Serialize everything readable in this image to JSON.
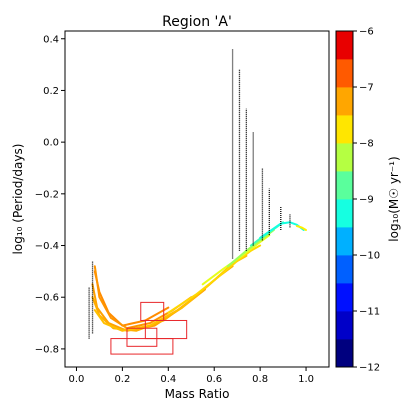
{
  "chart_data": {
    "type": "line",
    "title": "Region 'A'",
    "xlabel": "Mass Ratio",
    "ylabel": "log₁₀ (Period/days)",
    "xlim": [
      -0.05,
      1.1
    ],
    "ylim": [
      -0.87,
      0.43
    ],
    "x_ticks": [
      0.0,
      0.2,
      0.4,
      0.6,
      0.8,
      1.0
    ],
    "x_tick_labels": [
      "0.0",
      "0.2",
      "0.4",
      "0.6",
      "0.8",
      "1.0"
    ],
    "y_ticks": [
      -0.8,
      -0.6,
      -0.4,
      -0.2,
      0.0,
      0.2,
      0.4
    ],
    "y_tick_labels": [
      "−0.8",
      "−0.6",
      "−0.4",
      "−0.2",
      "0.0",
      "0.2",
      "0.4"
    ],
    "colorbar": {
      "label": "log₁₀(M☉ yr⁻¹)",
      "range": [
        -12,
        -6
      ],
      "ticks": [
        -12,
        -11,
        -10,
        -9,
        -8,
        -7,
        -6
      ],
      "tick_labels": [
        "−12",
        "−11",
        "−10",
        "−9",
        "−8",
        "−7",
        "−6"
      ],
      "bands": [
        {
          "from": -12.0,
          "to": -11.5,
          "color": "#00007f"
        },
        {
          "from": -11.5,
          "to": -11.0,
          "color": "#0000c8"
        },
        {
          "from": -11.0,
          "to": -10.5,
          "color": "#0010ff"
        },
        {
          "from": -10.5,
          "to": -10.0,
          "color": "#0060ff"
        },
        {
          "from": -10.0,
          "to": -9.5,
          "color": "#00b0ff"
        },
        {
          "from": -9.5,
          "to": -9.0,
          "color": "#16ffe1"
        },
        {
          "from": -9.0,
          "to": -8.5,
          "color": "#5aff9c"
        },
        {
          "from": -8.5,
          "to": -8.0,
          "color": "#b5ff42"
        },
        {
          "from": -8.0,
          "to": -7.5,
          "color": "#ffe600"
        },
        {
          "from": -7.5,
          "to": -7.0,
          "color": "#ffa600"
        },
        {
          "from": -7.0,
          "to": -6.5,
          "color": "#ff5a00"
        },
        {
          "from": -6.5,
          "to": -6.0,
          "color": "#e80000"
        },
        {
          "from": -6.0,
          "to": -5.5,
          "color": "#7f0000"
        }
      ]
    },
    "tracks": [
      {
        "color": "#ff8c00",
        "points": [
          [
            0.08,
            -0.5
          ],
          [
            0.1,
            -0.58
          ],
          [
            0.14,
            -0.66
          ],
          [
            0.2,
            -0.71
          ],
          [
            0.3,
            -0.69
          ],
          [
            0.4,
            -0.64
          ]
        ]
      },
      {
        "color": "#ff9500",
        "points": [
          [
            0.08,
            -0.48
          ],
          [
            0.1,
            -0.6
          ],
          [
            0.15,
            -0.68
          ],
          [
            0.22,
            -0.72
          ],
          [
            0.32,
            -0.7
          ],
          [
            0.42,
            -0.65
          ],
          [
            0.5,
            -0.6
          ]
        ]
      },
      {
        "color": "#ffa200",
        "points": [
          [
            0.07,
            -0.55
          ],
          [
            0.09,
            -0.64
          ],
          [
            0.14,
            -0.7
          ],
          [
            0.22,
            -0.73
          ],
          [
            0.34,
            -0.71
          ],
          [
            0.46,
            -0.64
          ],
          [
            0.56,
            -0.57
          ]
        ]
      },
      {
        "color": "#ffae00",
        "points": [
          [
            0.07,
            -0.6
          ],
          [
            0.1,
            -0.67
          ],
          [
            0.16,
            -0.72
          ],
          [
            0.26,
            -0.73
          ],
          [
            0.38,
            -0.69
          ],
          [
            0.5,
            -0.61
          ],
          [
            0.62,
            -0.52
          ],
          [
            0.68,
            -0.48
          ]
        ]
      },
      {
        "color": "#ffc000",
        "points": [
          [
            0.08,
            -0.65
          ],
          [
            0.12,
            -0.7
          ],
          [
            0.2,
            -0.73
          ],
          [
            0.32,
            -0.71
          ],
          [
            0.46,
            -0.64
          ],
          [
            0.58,
            -0.55
          ],
          [
            0.68,
            -0.47
          ],
          [
            0.74,
            -0.44
          ]
        ]
      },
      {
        "color": "#ffd800",
        "points": [
          [
            0.4,
            -0.66
          ],
          [
            0.52,
            -0.59
          ],
          [
            0.62,
            -0.52
          ],
          [
            0.7,
            -0.46
          ],
          [
            0.76,
            -0.42
          ],
          [
            0.8,
            -0.4
          ]
        ]
      },
      {
        "color": "#e6ff1a",
        "points": [
          [
            0.55,
            -0.55
          ],
          [
            0.64,
            -0.49
          ],
          [
            0.72,
            -0.44
          ],
          [
            0.78,
            -0.4
          ],
          [
            0.84,
            -0.36
          ]
        ]
      },
      {
        "color": "#9cff5a",
        "points": [
          [
            0.66,
            -0.48
          ],
          [
            0.74,
            -0.42
          ],
          [
            0.8,
            -0.38
          ],
          [
            0.86,
            -0.34
          ]
        ]
      },
      {
        "color": "#3dffba",
        "points": [
          [
            0.76,
            -0.4
          ],
          [
            0.82,
            -0.36
          ],
          [
            0.87,
            -0.33
          ],
          [
            0.9,
            -0.31
          ]
        ]
      },
      {
        "color": "#16ffe1",
        "points": [
          [
            0.8,
            -0.37
          ],
          [
            0.85,
            -0.34
          ],
          [
            0.89,
            -0.315
          ],
          [
            0.93,
            -0.31
          ],
          [
            0.96,
            -0.32
          ],
          [
            0.99,
            -0.34
          ]
        ]
      },
      {
        "color": "#ffee00",
        "points": [
          [
            0.96,
            -0.325
          ],
          [
            0.98,
            -0.33
          ],
          [
            1.0,
            -0.34
          ]
        ]
      }
    ],
    "vertical_lines": [
      {
        "x": 0.055,
        "y_range": [
          -0.76,
          -0.56
        ]
      },
      {
        "x": 0.07,
        "y_range": [
          -0.74,
          -0.46
        ]
      },
      {
        "x": 0.68,
        "y_range": [
          -0.45,
          0.36
        ]
      },
      {
        "x": 0.71,
        "y_range": [
          -0.42,
          0.28
        ]
      },
      {
        "x": 0.74,
        "y_range": [
          -0.42,
          0.13
        ]
      },
      {
        "x": 0.77,
        "y_range": [
          -0.4,
          0.04
        ]
      },
      {
        "x": 0.81,
        "y_range": [
          -0.38,
          -0.1
        ]
      },
      {
        "x": 0.84,
        "y_range": [
          -0.36,
          -0.18
        ]
      },
      {
        "x": 0.89,
        "y_range": [
          -0.34,
          -0.25
        ]
      },
      {
        "x": 0.93,
        "y_range": [
          -0.33,
          -0.28
        ]
      }
    ],
    "boxes": [
      {
        "x": [
          0.28,
          0.38
        ],
        "y": [
          -0.69,
          -0.62
        ]
      },
      {
        "x": [
          0.3,
          0.48
        ],
        "y": [
          -0.76,
          -0.69
        ]
      },
      {
        "x": [
          0.22,
          0.35
        ],
        "y": [
          -0.79,
          -0.72
        ]
      },
      {
        "x": [
          0.15,
          0.42
        ],
        "y": [
          -0.82,
          -0.76
        ]
      }
    ]
  }
}
